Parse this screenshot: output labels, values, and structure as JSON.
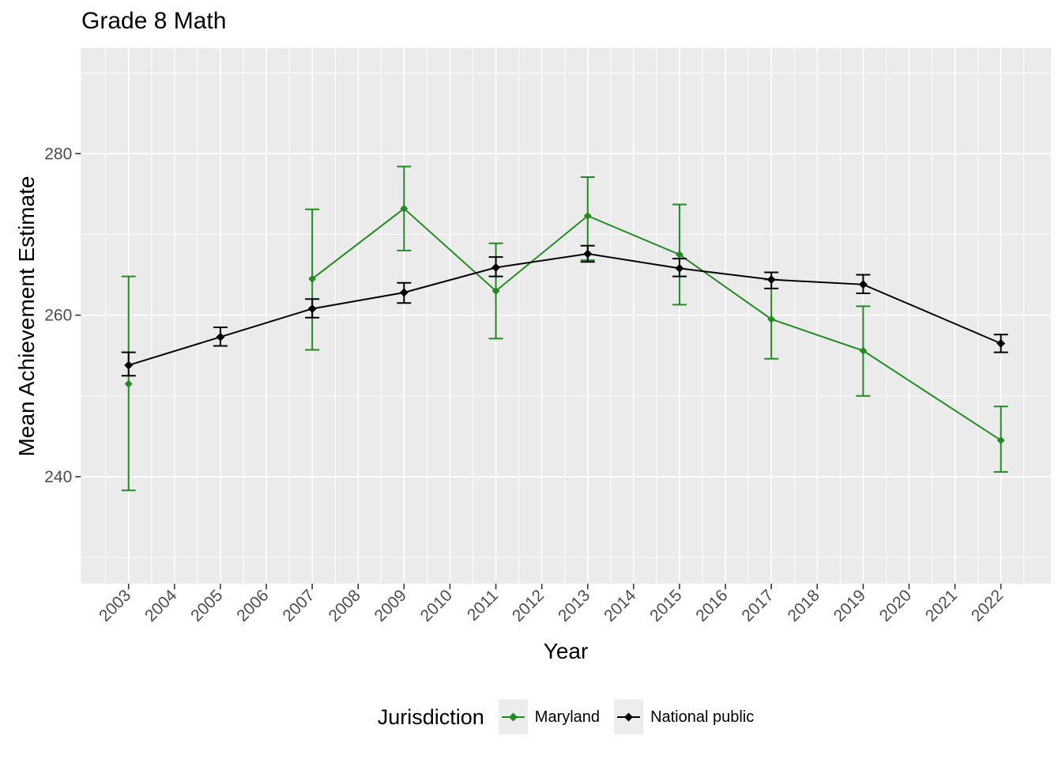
{
  "page": {
    "background": "#FFFFFF"
  },
  "chart_data": {
    "type": "line",
    "title": "Grade 8 Math",
    "xlabel": "Year",
    "ylabel": "Mean Achievement Estimate",
    "x_ticks": [
      2003,
      2004,
      2005,
      2006,
      2007,
      2008,
      2009,
      2010,
      2011,
      2012,
      2013,
      2014,
      2015,
      2016,
      2017,
      2018,
      2019,
      2020,
      2021,
      2022
    ],
    "y_ticks": [
      240,
      260,
      280
    ],
    "y_minor_ticks": [
      230,
      250,
      270,
      290
    ],
    "xlim": [
      2001.96,
      2023.09
    ],
    "ylim": [
      226.75,
      293.05
    ],
    "grid": true,
    "error_bars": true,
    "legend": {
      "title": "Jurisdiction",
      "position": "bottom"
    },
    "series": [
      {
        "name": "Maryland",
        "color": "#228B22",
        "marker": "diamond",
        "marker_size": 5,
        "points": [
          {
            "year": 2003,
            "value": 251.5,
            "lo": 238.3,
            "hi": 264.8,
            "connected": false
          },
          {
            "year": 2007,
            "value": 264.5,
            "lo": 255.7,
            "hi": 273.1
          },
          {
            "year": 2009,
            "value": 273.2,
            "lo": 268.0,
            "hi": 278.4
          },
          {
            "year": 2011,
            "value": 263.0,
            "lo": 257.1,
            "hi": 268.9
          },
          {
            "year": 2013,
            "value": 272.3,
            "lo": 266.8,
            "hi": 277.1
          },
          {
            "year": 2015,
            "value": 267.5,
            "lo": 261.3,
            "hi": 273.7
          },
          {
            "year": 2017,
            "value": 259.5,
            "lo": 254.6,
            "hi": 264.4
          },
          {
            "year": 2019,
            "value": 255.6,
            "lo": 250.0,
            "hi": 261.1
          },
          {
            "year": 2022,
            "value": 244.5,
            "lo": 240.6,
            "hi": 248.7
          }
        ]
      },
      {
        "name": "National public",
        "color": "#000000",
        "marker": "diamond",
        "marker_size": 5.5,
        "points": [
          {
            "year": 2003,
            "value": 253.8,
            "lo": 252.5,
            "hi": 255.4
          },
          {
            "year": 2005,
            "value": 257.3,
            "lo": 256.2,
            "hi": 258.5
          },
          {
            "year": 2007,
            "value": 260.8,
            "lo": 259.7,
            "hi": 262.0
          },
          {
            "year": 2009,
            "value": 262.8,
            "lo": 261.5,
            "hi": 264.0
          },
          {
            "year": 2011,
            "value": 265.9,
            "lo": 264.8,
            "hi": 267.2
          },
          {
            "year": 2013,
            "value": 267.6,
            "lo": 266.6,
            "hi": 268.6
          },
          {
            "year": 2015,
            "value": 265.8,
            "lo": 264.8,
            "hi": 267.0
          },
          {
            "year": 2017,
            "value": 264.4,
            "lo": 263.3,
            "hi": 265.3
          },
          {
            "year": 2019,
            "value": 263.8,
            "lo": 262.7,
            "hi": 265.0
          },
          {
            "year": 2022,
            "value": 256.5,
            "lo": 255.4,
            "hi": 257.6
          }
        ]
      }
    ],
    "colors": {
      "panel_bg": "#EBEBEB",
      "grid": "#FFFFFF",
      "tick_label": "#4D4D4D",
      "axis_tick": "#333333",
      "legend_key_bg": "#ECECEC",
      "maryland": "#228B22",
      "national_public": "#000000"
    }
  }
}
